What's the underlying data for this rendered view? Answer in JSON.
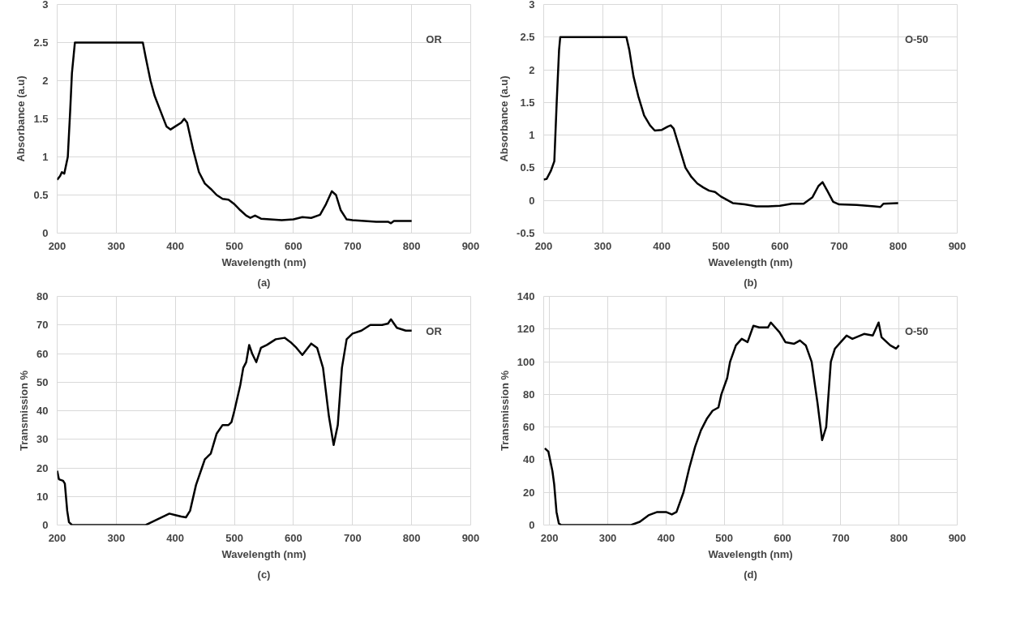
{
  "chart_data": [
    {
      "type": "line",
      "xlabel": "Wavelength (nm)",
      "ylabel": "Absorbance (a.u)",
      "annotations": [
        "(a)"
      ],
      "xlim": [
        200,
        900
      ],
      "xticks": [
        200,
        300,
        400,
        500,
        600,
        700,
        800,
        900
      ],
      "ylim": [
        0,
        3
      ],
      "yticks": [
        0,
        0.5,
        1,
        1.5,
        2,
        2.5,
        3
      ],
      "grid": true,
      "series": [
        {
          "name": "OR",
          "color": "#000000",
          "x": [
            200,
            205,
            208,
            212,
            218,
            222,
            225,
            230,
            345,
            350,
            358,
            365,
            375,
            385,
            392,
            400,
            410,
            415,
            420,
            430,
            440,
            450,
            460,
            470,
            480,
            490,
            500,
            510,
            520,
            527,
            535,
            545,
            560,
            580,
            600,
            615,
            630,
            645,
            655,
            665,
            672,
            680,
            690,
            700,
            720,
            740,
            760,
            765,
            770,
            800
          ],
          "values": [
            0.7,
            0.75,
            0.8,
            0.78,
            1.0,
            1.6,
            2.1,
            2.5,
            2.5,
            2.3,
            2.0,
            1.8,
            1.6,
            1.4,
            1.36,
            1.4,
            1.45,
            1.5,
            1.45,
            1.1,
            0.8,
            0.65,
            0.58,
            0.5,
            0.45,
            0.44,
            0.38,
            0.3,
            0.23,
            0.2,
            0.23,
            0.19,
            0.18,
            0.17,
            0.18,
            0.21,
            0.2,
            0.24,
            0.38,
            0.55,
            0.5,
            0.3,
            0.18,
            0.17,
            0.16,
            0.15,
            0.15,
            0.13,
            0.16,
            0.16
          ]
        }
      ]
    },
    {
      "type": "line",
      "xlabel": "Wavelength (nm)",
      "ylabel": "Absorbance (a.u)",
      "annotations": [
        "(b)"
      ],
      "xlim": [
        200,
        900
      ],
      "xticks": [
        200,
        300,
        400,
        500,
        600,
        700,
        800,
        900
      ],
      "ylim": [
        -0.5,
        3
      ],
      "yticks": [
        -0.5,
        0,
        0.5,
        1,
        1.5,
        2,
        2.5,
        3
      ],
      "grid": true,
      "series": [
        {
          "name": "O-50",
          "color": "#000000",
          "x": [
            200,
            205,
            212,
            218,
            222,
            226,
            228,
            340,
            345,
            352,
            360,
            370,
            380,
            388,
            400,
            410,
            415,
            420,
            430,
            440,
            450,
            460,
            470,
            480,
            490,
            500,
            510,
            520,
            540,
            560,
            580,
            600,
            620,
            640,
            655,
            665,
            672,
            680,
            690,
            700,
            730,
            760,
            770,
            775,
            800
          ],
          "values": [
            0.32,
            0.33,
            0.45,
            0.6,
            1.5,
            2.3,
            2.5,
            2.5,
            2.3,
            1.9,
            1.6,
            1.3,
            1.15,
            1.07,
            1.08,
            1.13,
            1.15,
            1.1,
            0.8,
            0.5,
            0.36,
            0.26,
            0.2,
            0.15,
            0.13,
            0.06,
            0.01,
            -0.04,
            -0.06,
            -0.09,
            -0.09,
            -0.08,
            -0.05,
            -0.05,
            0.05,
            0.22,
            0.28,
            0.15,
            -0.02,
            -0.06,
            -0.07,
            -0.09,
            -0.1,
            -0.05,
            -0.04
          ]
        }
      ]
    },
    {
      "type": "line",
      "xlabel": "Wavelength (nm)",
      "ylabel": "Transmission %",
      "annotations": [
        "(c)"
      ],
      "xlim": [
        200,
        900
      ],
      "xticks": [
        200,
        300,
        400,
        500,
        600,
        700,
        800,
        900
      ],
      "ylim": [
        0,
        80
      ],
      "yticks": [
        0,
        10,
        20,
        30,
        40,
        50,
        60,
        70,
        80
      ],
      "grid": true,
      "series": [
        {
          "name": "OR",
          "color": "#000000",
          "x": [
            200,
            203,
            210,
            213,
            217,
            220,
            225,
            350,
            360,
            375,
            390,
            400,
            410,
            418,
            425,
            435,
            445,
            450,
            460,
            470,
            480,
            490,
            495,
            500,
            510,
            515,
            520,
            525,
            530,
            537,
            545,
            555,
            570,
            585,
            595,
            605,
            615,
            630,
            640,
            650,
            660,
            668,
            675,
            682,
            690,
            700,
            715,
            730,
            750,
            760,
            765,
            775,
            790,
            800
          ],
          "values": [
            19,
            16,
            15.5,
            14.5,
            5,
            1,
            0,
            0,
            1,
            2.5,
            4,
            3.5,
            3,
            2.7,
            5,
            14,
            20,
            23,
            25,
            32,
            35,
            35,
            36,
            40,
            49,
            55,
            57,
            63,
            60,
            57,
            62,
            63,
            65,
            65.5,
            64,
            62,
            59.5,
            63.5,
            62,
            55,
            38,
            28,
            35,
            55,
            65,
            67,
            68,
            70,
            70,
            70.5,
            72,
            69,
            68,
            68
          ]
        }
      ]
    },
    {
      "type": "line",
      "xlabel": "Wavelength (nm)",
      "ylabel": "Transmission %",
      "annotations": [
        "(d)"
      ],
      "xlim": [
        190,
        900
      ],
      "xticks": [
        200,
        300,
        400,
        500,
        600,
        700,
        800,
        900
      ],
      "ylim": [
        0,
        140
      ],
      "yticks": [
        0,
        20,
        40,
        60,
        80,
        100,
        120,
        140
      ],
      "grid": true,
      "series": [
        {
          "name": "O-50",
          "color": "#000000",
          "x": [
            192,
            198,
            205,
            208,
            212,
            216,
            220,
            340,
            355,
            370,
            385,
            400,
            410,
            418,
            430,
            440,
            450,
            460,
            470,
            480,
            490,
            495,
            505,
            510,
            520,
            530,
            540,
            550,
            560,
            575,
            580,
            595,
            605,
            620,
            630,
            640,
            650,
            660,
            668,
            675,
            683,
            690,
            700,
            710,
            720,
            740,
            755,
            765,
            770,
            785,
            795,
            800
          ],
          "values": [
            47,
            45,
            33,
            25,
            8,
            1,
            0,
            0,
            2,
            6,
            8,
            8,
            6.5,
            8,
            20,
            35,
            48,
            58,
            65,
            70,
            72,
            80,
            90,
            100,
            110,
            114,
            112,
            122,
            121,
            121,
            124,
            118,
            112,
            111,
            113,
            110,
            100,
            75,
            52,
            60,
            100,
            108,
            112,
            116,
            114,
            117,
            116,
            124,
            115,
            110,
            108,
            110
          ]
        }
      ]
    }
  ]
}
